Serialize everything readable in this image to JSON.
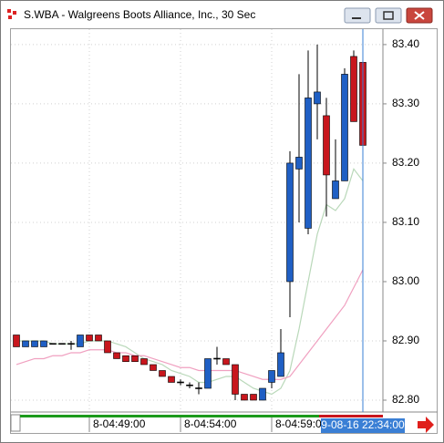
{
  "window_title": "S.WBA - Walgreens Boots Alliance, Inc., 30 Sec",
  "chart_data": {
    "type": "candlestick",
    "open": [
      82.91,
      82.89,
      82.89,
      82.89,
      82.895,
      82.895,
      82.895,
      82.89,
      82.91,
      82.91,
      82.9,
      82.88,
      82.875,
      82.875,
      82.87,
      82.86,
      82.85,
      82.84,
      82.83,
      82.825,
      82.82,
      82.82,
      82.87,
      82.87,
      82.86,
      82.81,
      82.81,
      82.8,
      82.83,
      82.84,
      83.0,
      83.19,
      83.09,
      83.3,
      83.28,
      83.14,
      83.17,
      83.38,
      83.37
    ],
    "high": [
      82.91,
      82.9,
      82.9,
      82.9,
      82.895,
      82.895,
      82.9,
      82.91,
      82.91,
      82.91,
      82.9,
      82.88,
      82.875,
      82.875,
      82.87,
      82.86,
      82.85,
      82.84,
      82.835,
      82.83,
      82.83,
      82.87,
      82.89,
      82.87,
      82.86,
      82.81,
      82.81,
      82.82,
      82.85,
      82.92,
      83.22,
      83.35,
      83.39,
      83.4,
      83.31,
      83.24,
      83.36,
      83.39,
      83.37
    ],
    "low": [
      82.89,
      82.89,
      82.89,
      82.89,
      82.895,
      82.895,
      82.885,
      82.89,
      82.9,
      82.9,
      82.88,
      82.87,
      82.865,
      82.865,
      82.86,
      82.85,
      82.84,
      82.83,
      82.825,
      82.82,
      82.81,
      82.82,
      82.86,
      82.86,
      82.8,
      82.8,
      82.8,
      82.8,
      82.82,
      82.84,
      82.94,
      83.1,
      83.08,
      83.24,
      83.11,
      83.14,
      83.17,
      83.27,
      83.16
    ],
    "close": [
      82.89,
      82.9,
      82.9,
      82.9,
      82.895,
      82.895,
      82.895,
      82.91,
      82.9,
      82.9,
      82.88,
      82.87,
      82.865,
      82.865,
      82.86,
      82.85,
      82.84,
      82.83,
      82.83,
      82.825,
      82.82,
      82.87,
      82.87,
      82.86,
      82.81,
      82.8,
      82.8,
      82.82,
      82.85,
      82.88,
      83.2,
      83.21,
      83.31,
      83.32,
      83.18,
      83.17,
      83.35,
      83.27,
      83.23
    ],
    "up_color": "#1f5fc4",
    "down_color": "#c8161d",
    "flat_color": "#000000",
    "overlays": [
      {
        "color": "#b9d8b9",
        "values": [
          82.9,
          82.9,
          82.9,
          82.9,
          82.895,
          82.895,
          82.895,
          82.895,
          82.9,
          82.9,
          82.9,
          82.895,
          82.89,
          82.88,
          82.87,
          82.865,
          82.86,
          82.85,
          82.845,
          82.84,
          82.83,
          82.83,
          82.835,
          82.84,
          82.84,
          82.83,
          82.82,
          82.815,
          82.81,
          82.82,
          82.85,
          82.92,
          83.0,
          83.08,
          83.13,
          83.12,
          83.14,
          83.19,
          83.17
        ]
      },
      {
        "color": "#f0a0c0",
        "values": [
          82.86,
          82.865,
          82.87,
          82.87,
          82.875,
          82.875,
          82.88,
          82.88,
          82.885,
          82.885,
          82.885,
          82.88,
          82.88,
          82.875,
          82.875,
          82.87,
          82.865,
          82.86,
          82.855,
          82.855,
          82.85,
          82.85,
          82.85,
          82.85,
          82.85,
          82.845,
          82.84,
          82.835,
          82.835,
          82.835,
          82.84,
          82.86,
          82.88,
          82.9,
          82.92,
          82.94,
          82.96,
          82.99,
          83.02
        ]
      }
    ],
    "ylim": [
      82.78,
      83.426
    ],
    "yticks": [
      {
        "value": 82.8,
        "label": "82.80"
      },
      {
        "value": 82.9,
        "label": "82.90"
      },
      {
        "value": 83.0,
        "label": "83.00"
      },
      {
        "value": 83.1,
        "label": "83.10"
      },
      {
        "value": 83.2,
        "label": "83.20"
      },
      {
        "value": 83.3,
        "label": "83.30"
      },
      {
        "value": 83.4,
        "label": "83.40"
      }
    ],
    "x_tick_labels": [
      "8-04:49:00",
      "8-04:54:00",
      "8-04:59:00"
    ],
    "cursor_label": "9-08-16 22:34:00",
    "grid": true
  }
}
